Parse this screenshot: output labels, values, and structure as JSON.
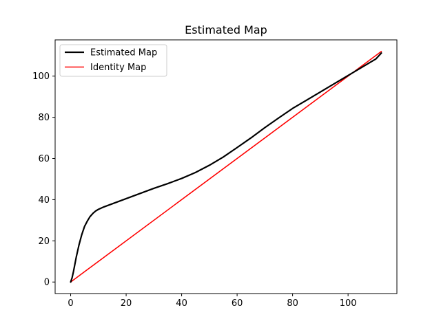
{
  "chart_data": {
    "type": "line",
    "title": "Estimated Map",
    "xlabel": "",
    "ylabel": "",
    "xlim": [
      -5.6,
      117.6
    ],
    "ylim": [
      -5.6,
      117.6
    ],
    "xticks": [
      0,
      20,
      40,
      60,
      80,
      100
    ],
    "yticks": [
      0,
      20,
      40,
      60,
      80,
      100
    ],
    "grid": false,
    "legend_position": "top-left",
    "series": [
      {
        "name": "Estimated Map",
        "color": "#000000",
        "x": [
          0,
          0.5,
          1,
          2,
          3,
          4,
          5,
          6,
          7,
          8,
          9,
          10,
          12,
          15,
          20,
          25,
          30,
          35,
          40,
          45,
          50,
          55,
          60,
          65,
          70,
          75,
          80,
          85,
          90,
          95,
          100,
          105,
          110,
          112
        ],
        "y": [
          0,
          2,
          5,
          12,
          18,
          23,
          27,
          29.6,
          31.8,
          33.3,
          34.5,
          35.3,
          36.5,
          38,
          40.5,
          43,
          45.5,
          47.8,
          50.3,
          53.2,
          56.7,
          60.7,
          65.3,
          70,
          75,
          79.7,
          84.3,
          88.3,
          92.3,
          96.3,
          100.3,
          104.3,
          108.3,
          111.2
        ]
      },
      {
        "name": "Identity Map",
        "color": "#ff0000",
        "x": [
          0,
          112
        ],
        "y": [
          0,
          112
        ]
      }
    ]
  }
}
